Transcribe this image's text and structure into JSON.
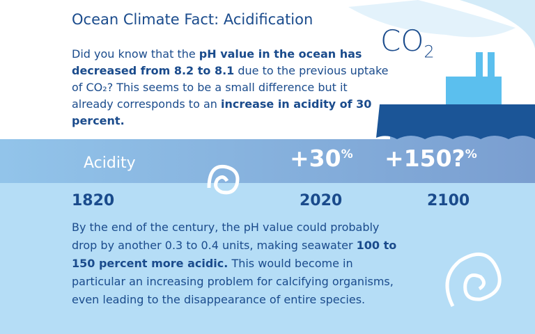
{
  "title": "Ocean Climate Fact: Acidification",
  "co2_label": {
    "main": "CO",
    "sub": "2"
  },
  "intro": {
    "parts": [
      {
        "text": "Did you know that the ",
        "bold": false
      },
      {
        "text": "pH value in the ocean has decreased from 8.2 to 8.1",
        "bold": true
      },
      {
        "text": " due to the previous uptake of CO₂? This seems to be a small difference but it already corresponds to an ",
        "bold": false
      },
      {
        "text": "increase in acidity of 30 percent.",
        "bold": true
      }
    ]
  },
  "acidity": {
    "label": "Acidity",
    "increases": [
      {
        "main": "+30",
        "sup": "%"
      },
      {
        "main": "+150?",
        "sup": "%"
      }
    ],
    "years": [
      "1820",
      "2020",
      "2100"
    ]
  },
  "closing": {
    "parts": [
      {
        "text": "By the end of the century, the pH value could probably drop by another 0.3 to 0.4 units, making seawater ",
        "bold": false
      },
      {
        "text": "100 to 150 percent more acidic.",
        "bold": true
      },
      {
        "text": " This would become in particular an increasing problem for calcifying organisms, even leading to the disappearance of entire species.",
        "bold": false
      }
    ]
  }
}
